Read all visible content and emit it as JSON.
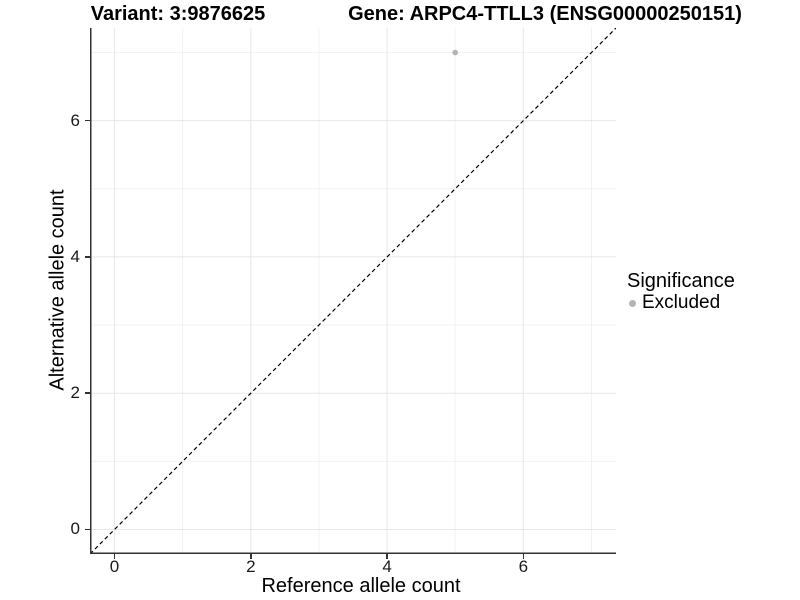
{
  "header": {
    "variant_title": "Variant: 3:9876625",
    "gene_title": "Gene: ARPC4-TTLL3 (ENSG00000250151)"
  },
  "legend": {
    "title": "Significance",
    "items": [
      {
        "label": "Excluded",
        "color": "#b3b3b3"
      }
    ]
  },
  "chart_data": {
    "type": "scatter",
    "title": "Variant: 3:9876625  Gene: ARPC4-TTLL3 (ENSG00000250151)",
    "xlabel": "Reference allele count",
    "ylabel": "Alternative allele count",
    "xlim": [
      -0.36,
      7.36
    ],
    "ylim": [
      -0.36,
      7.36
    ],
    "x_ticks": [
      0,
      2,
      4,
      6
    ],
    "y_ticks": [
      0,
      2,
      4,
      6
    ],
    "x_minor_ticks": [
      1,
      3,
      5,
      7
    ],
    "y_minor_ticks": [
      1,
      3,
      5,
      7
    ],
    "grid": true,
    "legend_position": "right",
    "identity_line": {
      "style": "dashed",
      "color": "#000000",
      "equation": "y = x"
    },
    "series": [
      {
        "name": "Excluded",
        "color": "#b3b3b3",
        "points": [
          {
            "x": 5,
            "y": 7
          }
        ]
      }
    ],
    "colors": {
      "major_grid": "#e7e7e7",
      "minor_grid": "#f2f2f2",
      "axis_line": "#333333",
      "point": "#b3b3b3",
      "background": "#ffffff"
    }
  }
}
